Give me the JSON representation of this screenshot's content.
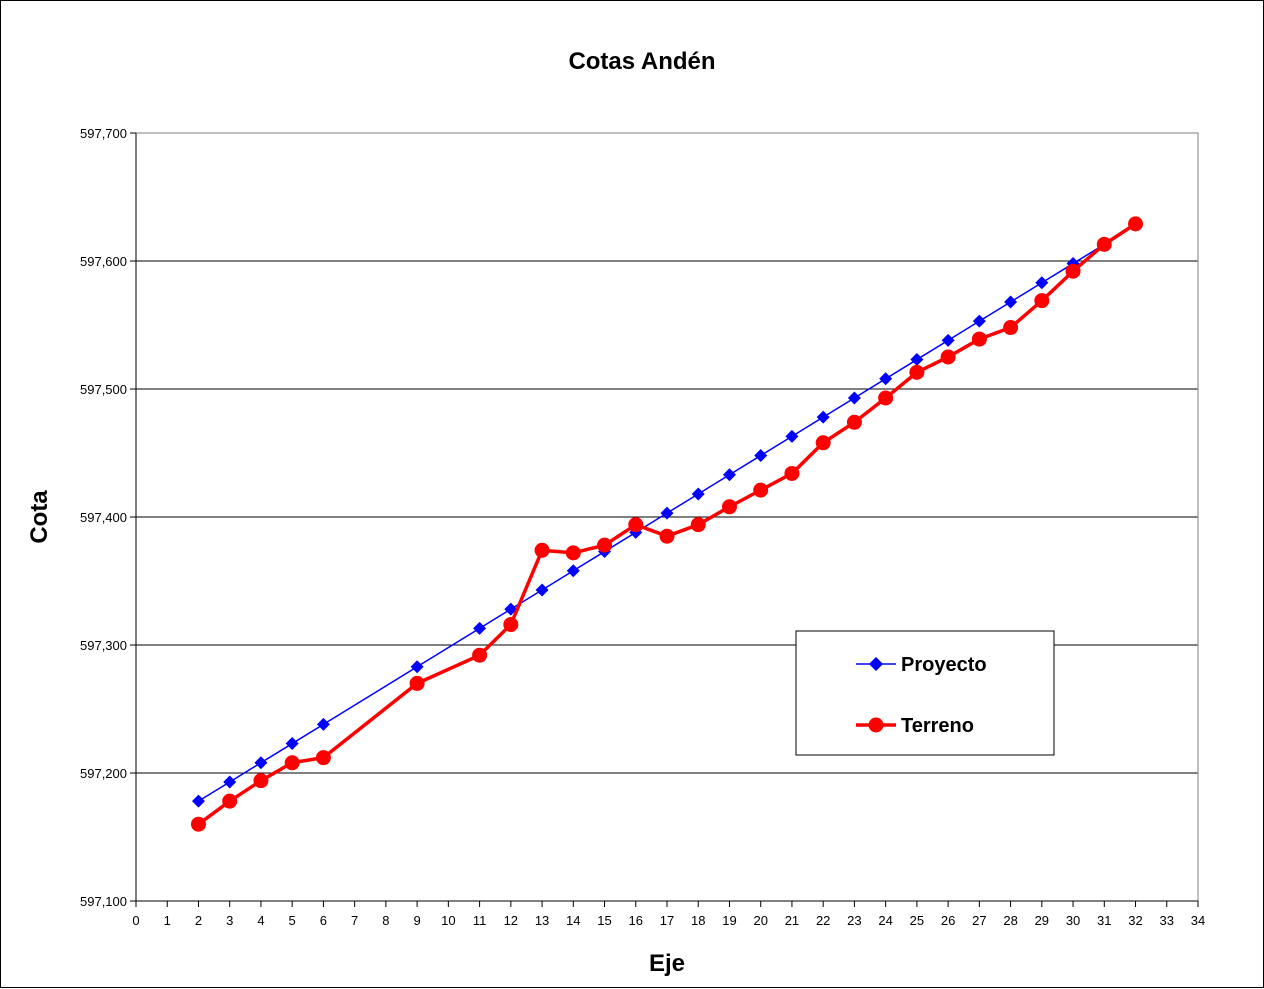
{
  "chart_data": {
    "type": "line",
    "title": "Cotas Andén",
    "xlabel": "Eje",
    "ylabel": "Cota",
    "xlim": [
      0,
      34
    ],
    "ylim": [
      597.1,
      597.7
    ],
    "x_ticks": [
      0,
      1,
      2,
      3,
      4,
      5,
      6,
      7,
      8,
      9,
      10,
      11,
      12,
      13,
      14,
      15,
      16,
      17,
      18,
      19,
      20,
      21,
      22,
      23,
      24,
      25,
      26,
      27,
      28,
      29,
      30,
      31,
      32,
      33,
      34
    ],
    "x_tick_labels": [
      "0",
      "1",
      "2",
      "3",
      "4",
      "5",
      "6",
      "7",
      "8",
      "9",
      "10",
      "11",
      "12",
      "13",
      "14",
      "15",
      "16",
      "17",
      "18",
      "19",
      "20",
      "21",
      "22",
      "23",
      "24",
      "25",
      "26",
      "27",
      "28",
      "29",
      "30",
      "31",
      "32",
      "33",
      "34"
    ],
    "y_ticks": [
      597.1,
      597.2,
      597.3,
      597.4,
      597.5,
      597.6,
      597.7
    ],
    "y_tick_labels": [
      "597,100",
      "597,200",
      "597,300",
      "597,400",
      "597,500",
      "597,600",
      "597,700"
    ],
    "grid": "horizontal",
    "legend_position": "right",
    "x": [
      2,
      3,
      4,
      5,
      6,
      9,
      11,
      12,
      13,
      14,
      15,
      16,
      17,
      18,
      19,
      20,
      21,
      22,
      23,
      24,
      25,
      26,
      27,
      28,
      29,
      30,
      31,
      32
    ],
    "series": [
      {
        "name": "Proyecto",
        "color": "#0000ff",
        "marker": "diamond",
        "values": [
          597.178,
          597.193,
          597.208,
          597.223,
          597.238,
          597.283,
          597.313,
          597.328,
          597.343,
          597.358,
          597.373,
          597.388,
          597.403,
          597.418,
          597.433,
          597.448,
          597.463,
          597.478,
          597.493,
          597.508,
          597.523,
          597.538,
          597.553,
          597.568,
          597.583,
          597.598,
          597.613,
          597.628
        ]
      },
      {
        "name": "Terreno",
        "color": "#ff0000",
        "marker": "circle",
        "values": [
          597.16,
          597.178,
          597.194,
          597.208,
          597.212,
          597.27,
          597.292,
          597.316,
          597.374,
          597.372,
          597.378,
          597.394,
          597.385,
          597.394,
          597.408,
          597.421,
          597.434,
          597.458,
          597.474,
          597.493,
          597.513,
          597.525,
          597.539,
          597.548,
          597.569,
          597.592,
          597.613,
          597.629
        ]
      }
    ]
  }
}
